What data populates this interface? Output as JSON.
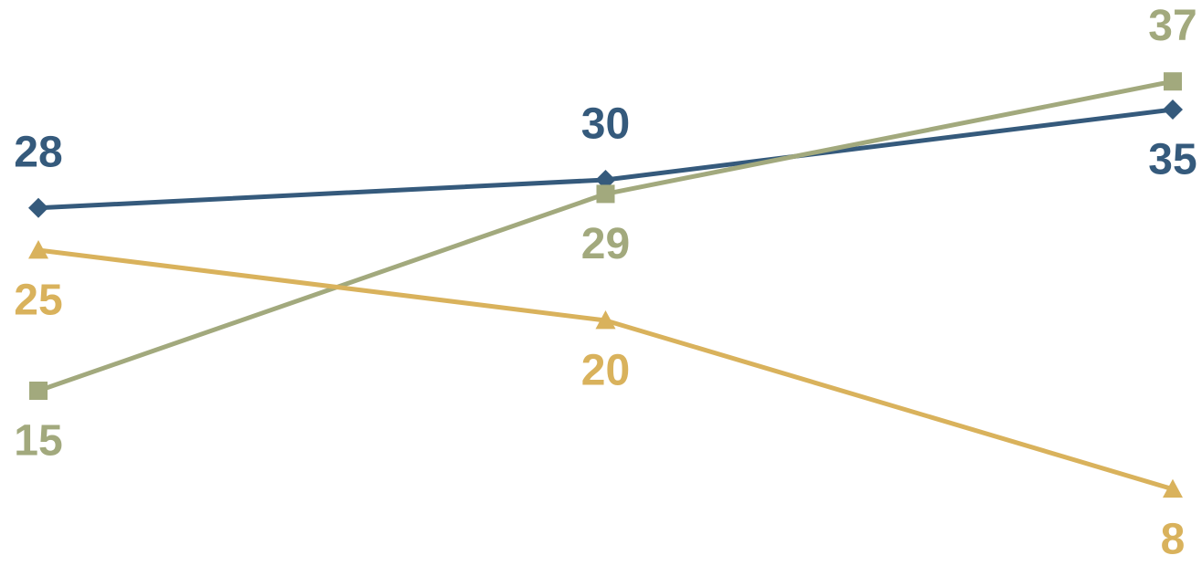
{
  "chart_data": {
    "type": "line",
    "categories": [
      "",
      "",
      ""
    ],
    "title": "",
    "xlabel": "",
    "ylabel": "",
    "ylim": [
      0,
      40
    ],
    "grid": false,
    "legend": "none",
    "series": [
      {
        "values": [
          28,
          30,
          35
        ],
        "labels": [
          "28",
          "30",
          "35"
        ],
        "color": "#355a7c",
        "marker": "diamond",
        "label_positions": [
          "above",
          "above",
          "below"
        ]
      },
      {
        "values": [
          15,
          29,
          37
        ],
        "labels": [
          "15",
          "29",
          "37"
        ],
        "color": "#a2a97d",
        "marker": "square",
        "label_positions": [
          "below",
          "below",
          "above"
        ]
      },
      {
        "values": [
          25,
          20,
          8
        ],
        "labels": [
          "25",
          "20",
          "8"
        ],
        "color": "#d9b25c",
        "marker": "triangle",
        "label_positions": [
          "below",
          "below",
          "below"
        ]
      }
    ]
  }
}
